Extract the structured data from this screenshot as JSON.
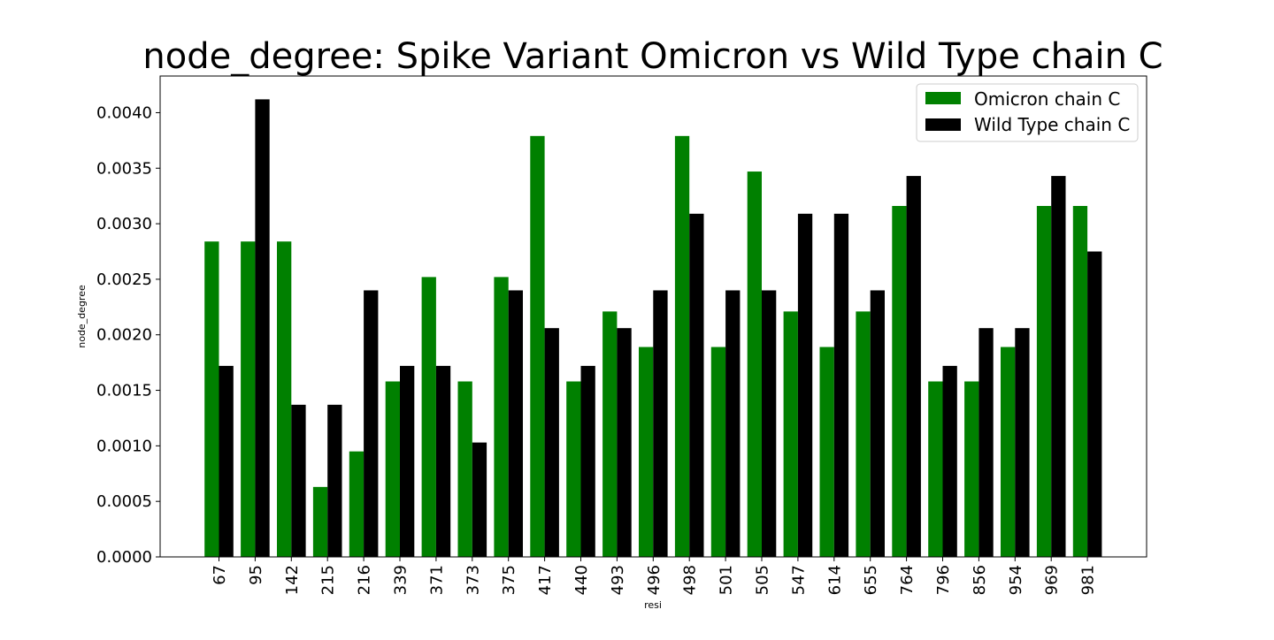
{
  "chart_data": {
    "type": "bar",
    "title": "node_degree: Spike Variant Omicron vs Wild Type chain C",
    "xlabel": "resi",
    "ylabel": "node_degree",
    "ylim": [
      0,
      0.00433
    ],
    "yticks": [
      "0.0000",
      "0.0005",
      "0.0010",
      "0.0015",
      "0.0020",
      "0.0025",
      "0.0030",
      "0.0035",
      "0.0040"
    ],
    "grid": false,
    "legend_position": "top-right",
    "categories": [
      "67",
      "95",
      "142",
      "215",
      "216",
      "339",
      "371",
      "373",
      "375",
      "417",
      "440",
      "493",
      "496",
      "498",
      "501",
      "505",
      "547",
      "614",
      "655",
      "764",
      "796",
      "856",
      "954",
      "969",
      "981"
    ],
    "series": [
      {
        "name": "Omicron chain C",
        "color": "#008000",
        "values": [
          0.00284,
          0.00284,
          0.00284,
          0.00063,
          0.00095,
          0.00158,
          0.00252,
          0.00158,
          0.00252,
          0.00379,
          0.00158,
          0.00221,
          0.00189,
          0.00379,
          0.00189,
          0.00347,
          0.00221,
          0.00189,
          0.00221,
          0.00316,
          0.00158,
          0.00158,
          0.00189,
          0.00316,
          0.00316
        ]
      },
      {
        "name": "Wild Type chain C",
        "color": "#000000",
        "values": [
          0.00172,
          0.00412,
          0.00137,
          0.00137,
          0.0024,
          0.00172,
          0.00172,
          0.00103,
          0.0024,
          0.00206,
          0.00172,
          0.00206,
          0.0024,
          0.00309,
          0.0024,
          0.0024,
          0.00309,
          0.00309,
          0.0024,
          0.00343,
          0.00172,
          0.00206,
          0.00206,
          0.00343,
          0.00275
        ]
      }
    ]
  }
}
